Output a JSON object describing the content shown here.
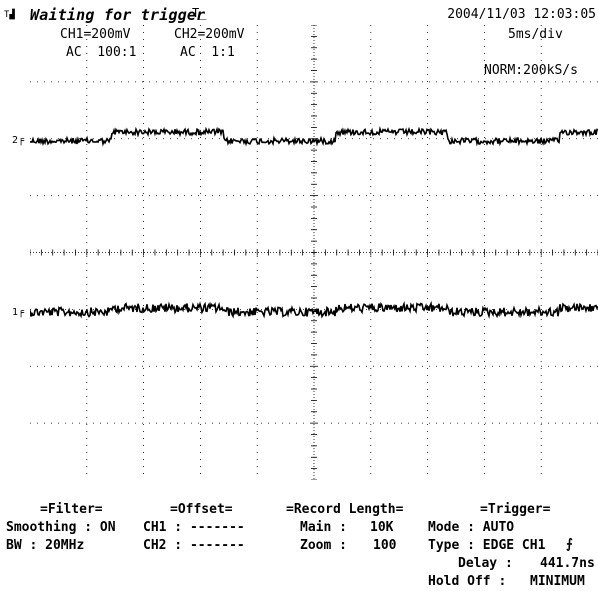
{
  "status": {
    "title": "Waiting for trigger",
    "datetime": "2004/11/03  12:03:05"
  },
  "channels": {
    "ch1_scale": "CH1=200mV",
    "ch2_scale": "CH2=200mV",
    "ch1_coupling": "AC  100:1",
    "ch2_coupling": "AC  1:1",
    "ch1_marker": "1",
    "ch2_marker": "2"
  },
  "timebase": {
    "div": "5ms/div",
    "mode": "NORM:200kS/s"
  },
  "filter": {
    "title": "=Filter=",
    "smoothing_label": "Smoothing : ON",
    "bw_label": "BW : 20MHz"
  },
  "offset": {
    "title": "=Offset=",
    "ch1": "CH1 : -------",
    "ch2": "CH2 : -------"
  },
  "record": {
    "title": "=Record Length=",
    "main_label": "Main :",
    "main_value": "10K",
    "zoom_label": "Zoom :",
    "zoom_value": "100"
  },
  "trigger": {
    "title": "=Trigger=",
    "mode": "Mode : AUTO",
    "type": "Type : EDGE CH1",
    "delay_label": "Delay :",
    "delay_value": "441.7ns",
    "holdoff_label": "Hold Off :",
    "holdoff_value": "MINIMUM"
  },
  "icons": {
    "trigger_edge": "rising-edge-icon",
    "trigger_level": "trigger-level-icon"
  }
}
